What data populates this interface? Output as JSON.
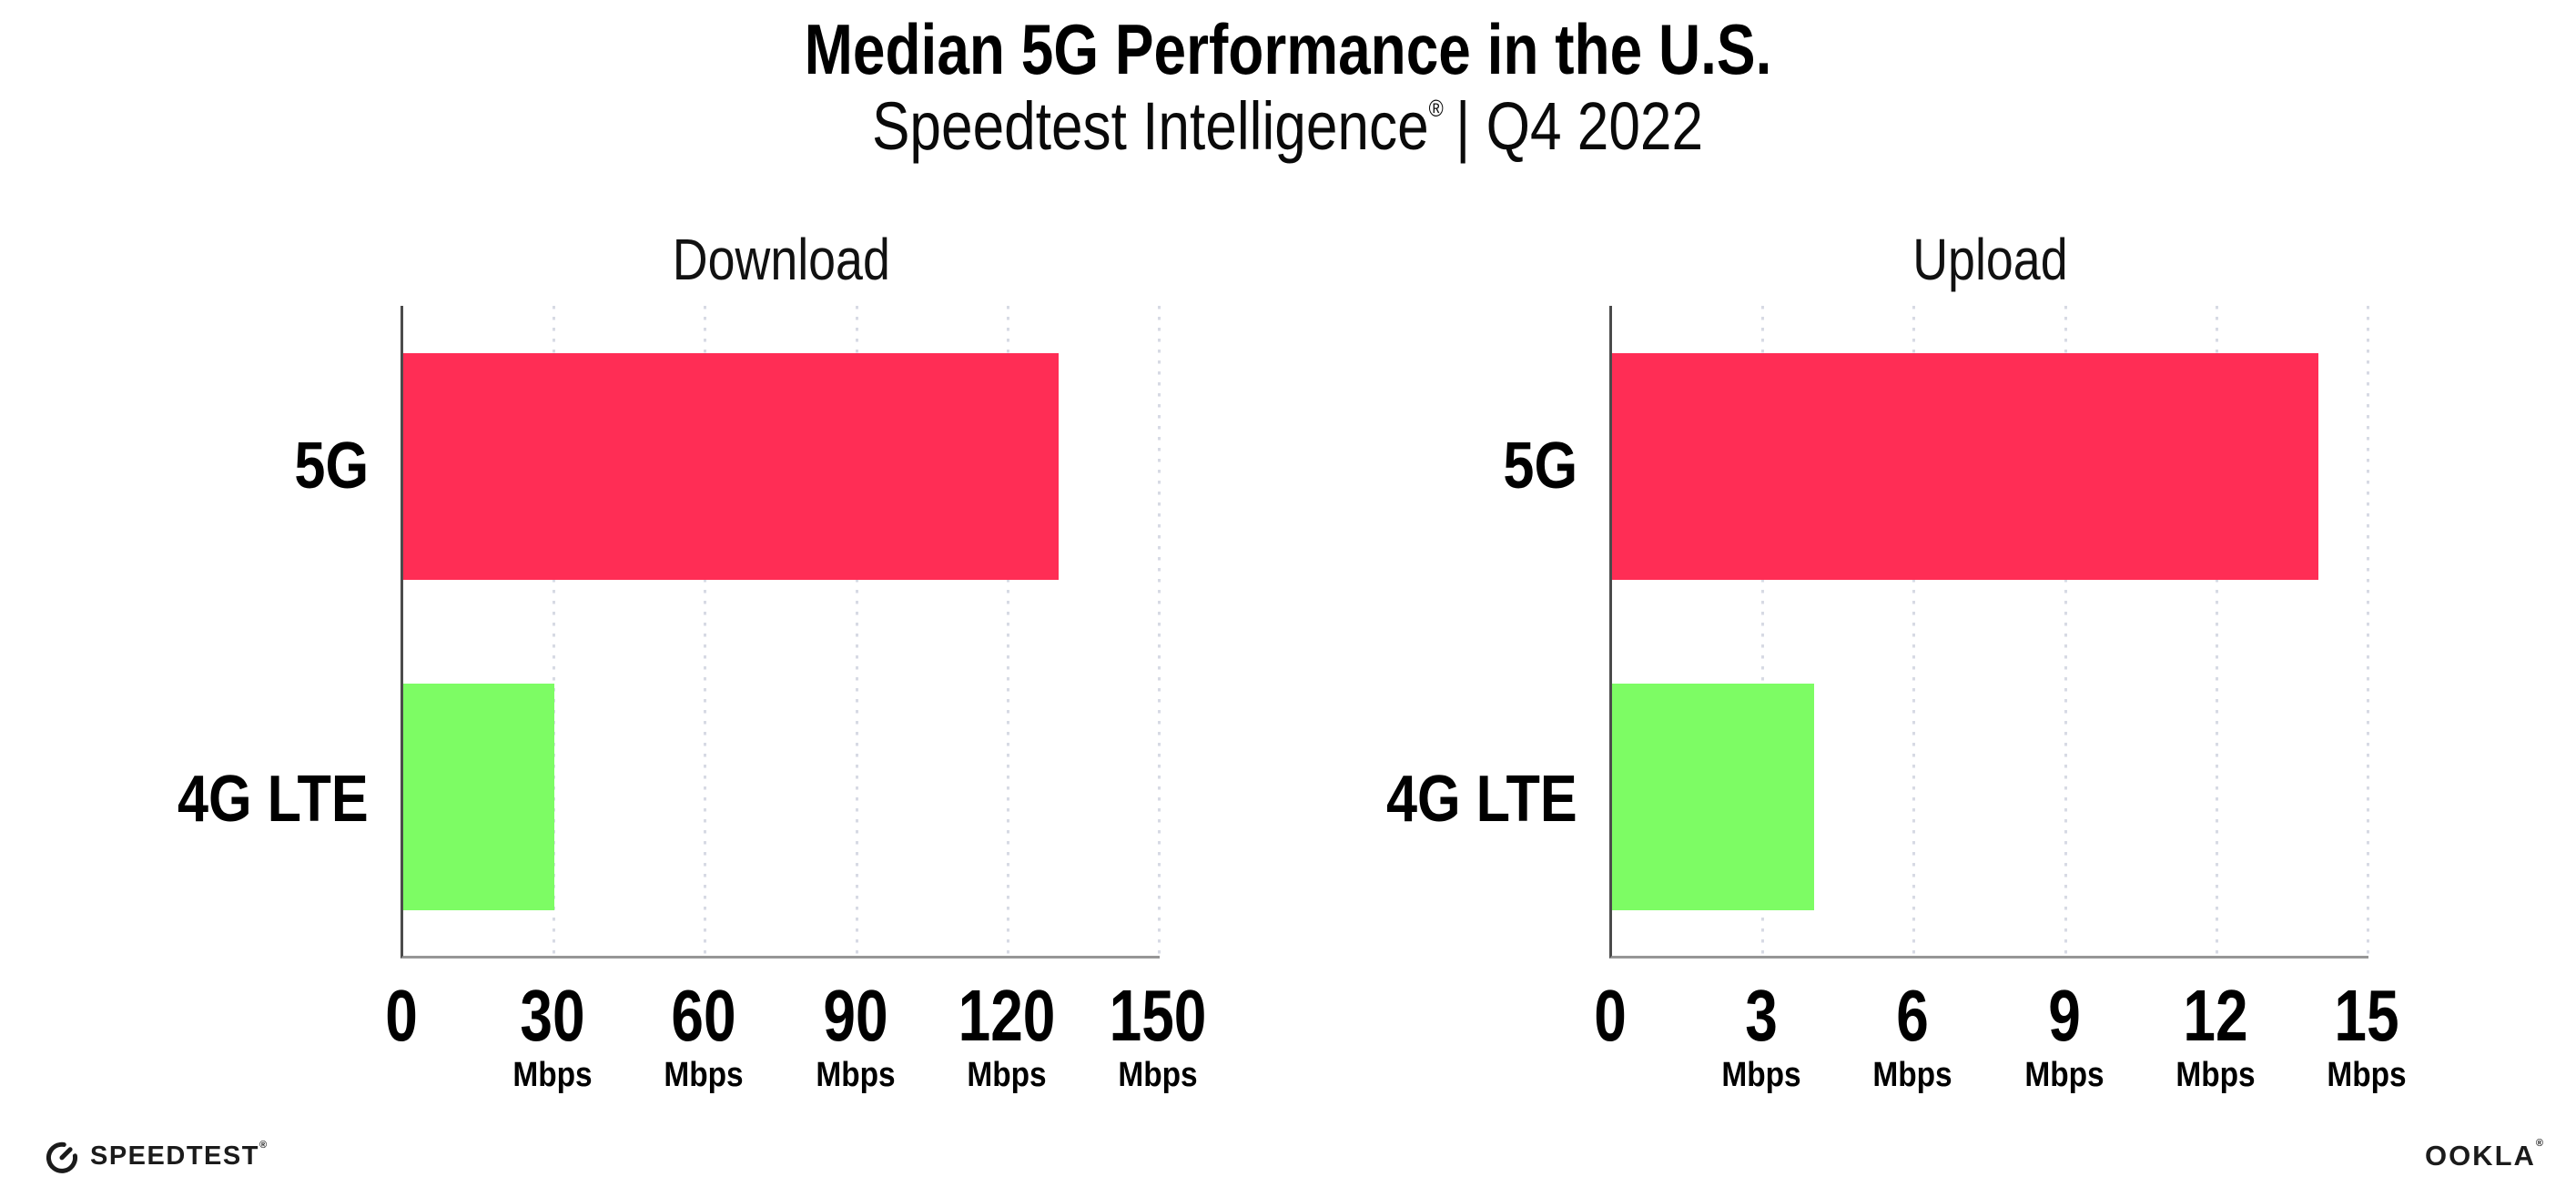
{
  "header": {
    "title": "Median 5G Performance in the U.S.",
    "subtitle_product": "Speedtest Intelligence",
    "subtitle_mark": "®",
    "subtitle_rest": "| Q4 2022"
  },
  "chart_data": [
    {
      "type": "bar",
      "orientation": "horizontal",
      "title": "Download",
      "categories": [
        "5G",
        "4G LTE"
      ],
      "values": [
        130,
        30
      ],
      "unit": "Mbps",
      "xlim": [
        0,
        150
      ],
      "xticks": [
        0,
        30,
        60,
        90,
        120,
        150
      ],
      "bar_colors": [
        "#FF2D55",
        "#7DFC64"
      ],
      "grid": "dotted-vertical",
      "legend": "none"
    },
    {
      "type": "bar",
      "orientation": "horizontal",
      "title": "Upload",
      "categories": [
        "5G",
        "4G LTE"
      ],
      "values": [
        14,
        4
      ],
      "unit": "Mbps",
      "xlim": [
        0,
        15
      ],
      "xticks": [
        0,
        3,
        6,
        9,
        12,
        15
      ],
      "bar_colors": [
        "#FF2D55",
        "#7DFC64"
      ],
      "grid": "dotted-vertical",
      "legend": "none"
    }
  ],
  "footer": {
    "speedtest_logo": "SPEEDTEST",
    "speedtest_mark": "®",
    "speedtest_icon": "gauge-icon",
    "ookla_logo": "OOKLA",
    "ookla_mark": "®"
  }
}
